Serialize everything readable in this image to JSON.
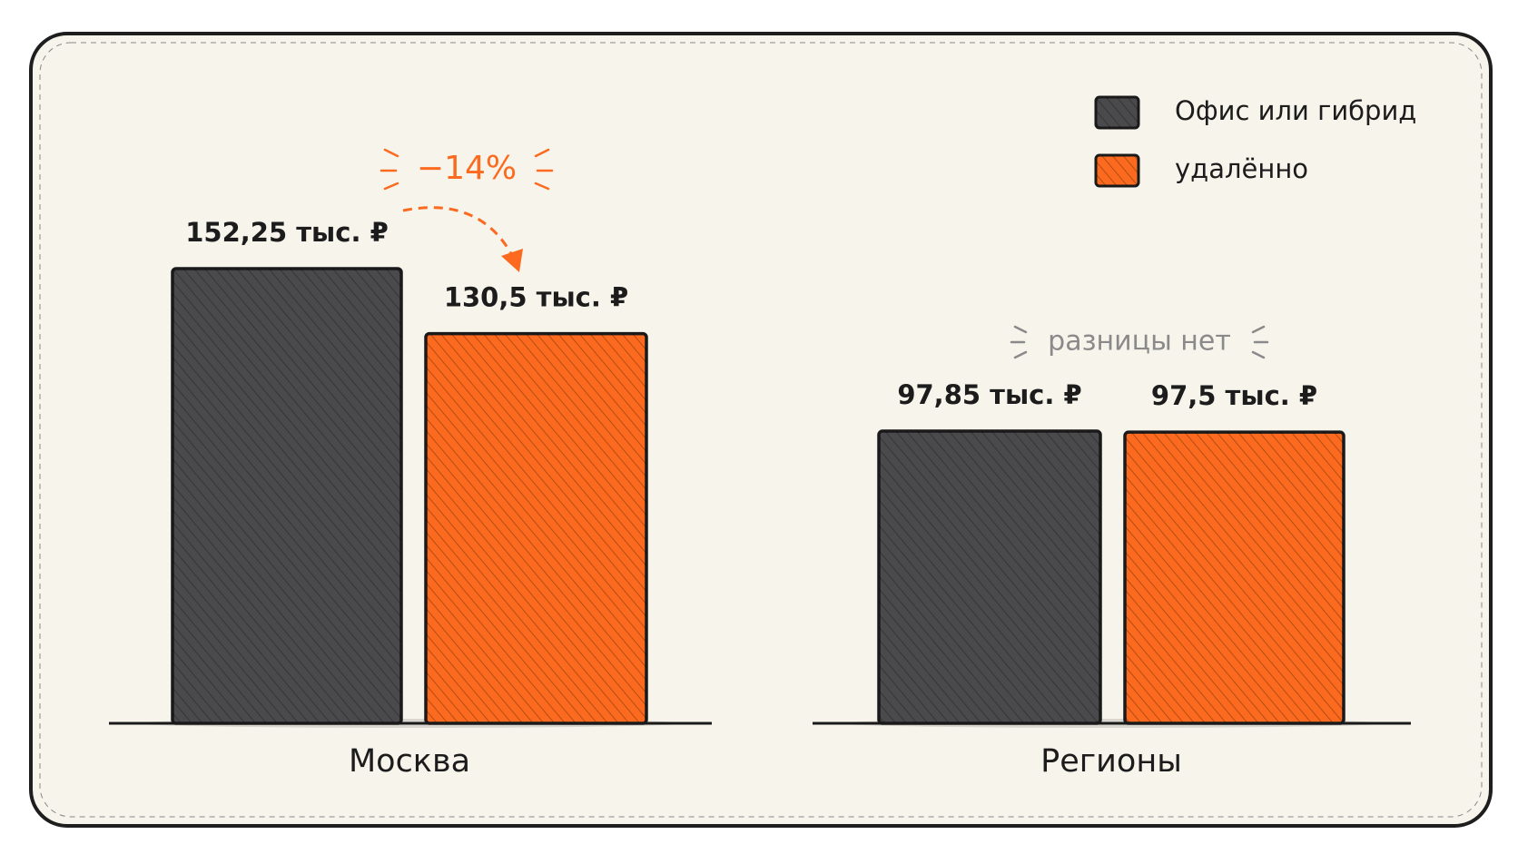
{
  "chart_data": {
    "type": "bar",
    "categories": [
      "Москва",
      "Регионы"
    ],
    "series": [
      {
        "name": "Офис или гибрид",
        "color": "#4a4a4d",
        "values": [
          152.25,
          97.85
        ],
        "value_labels": [
          "152,25 тыс. ₽",
          "97,85 тыс. ₽"
        ]
      },
      {
        "name": "удалённо",
        "color": "#fb6a1e",
        "values": [
          130.5,
          97.5
        ],
        "value_labels": [
          "130,5 тыс. ₽",
          "97,5 тыс. ₽"
        ]
      }
    ],
    "annotations": [
      "−14%",
      "разницы нет"
    ],
    "legend": "top-right"
  }
}
